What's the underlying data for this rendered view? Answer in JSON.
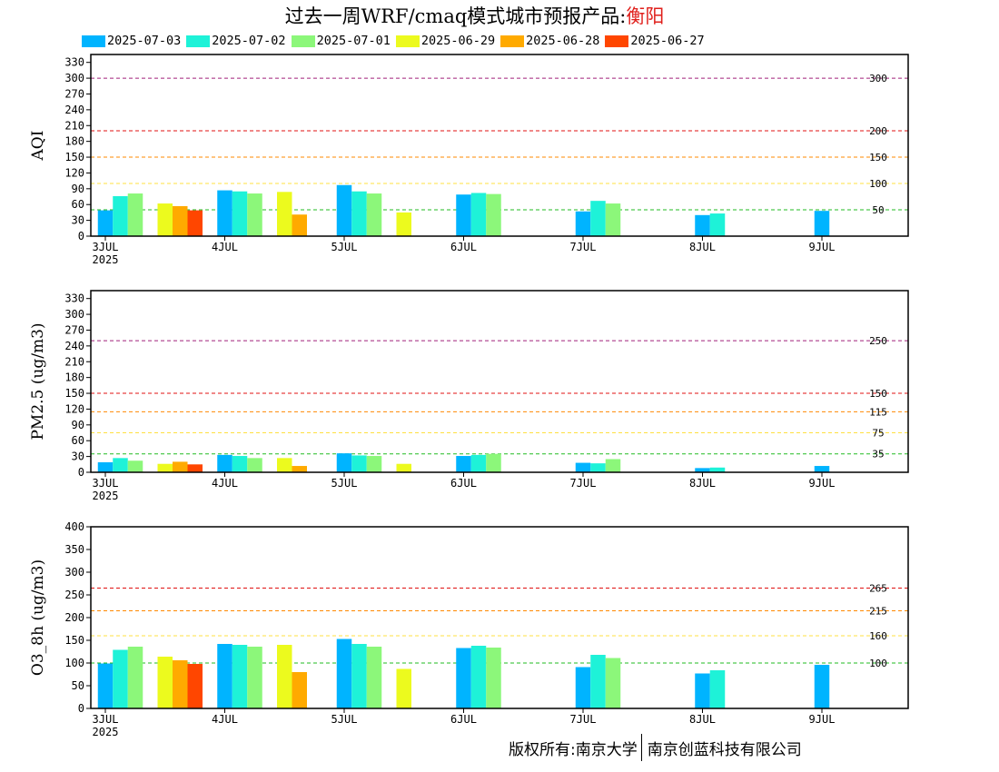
{
  "title": {
    "main": "过去一周WRF/cmaq模式城市预报产品:",
    "city": "衡阳"
  },
  "legend": [
    {
      "label": "2025-07-03",
      "color": "#00b4ff"
    },
    {
      "label": "2025-07-02",
      "color": "#1ef2d8"
    },
    {
      "label": "2025-07-01",
      "color": "#8cf77a"
    },
    {
      "label": "2025-06-29",
      "color": "#ecfa1e"
    },
    {
      "label": "2025-06-28",
      "color": "#ffaa00"
    },
    {
      "label": "2025-06-27",
      "color": "#ff4600"
    }
  ],
  "footer": {
    "left": "版权所有:南京大学",
    "right": "南京创蓝科技有限公司"
  },
  "chart_data": [
    {
      "type": "bar",
      "ylabel": "AQI",
      "ylim": [
        0,
        345
      ],
      "yticks": [
        0,
        30,
        60,
        90,
        120,
        150,
        180,
        210,
        240,
        270,
        300,
        330
      ],
      "xticks": [
        "3JUL",
        "4JUL",
        "5JUL",
        "6JUL",
        "7JUL",
        "8JUL",
        "9JUL"
      ],
      "xsublabel": "2025",
      "thresholds": [
        {
          "value": 300,
          "label": "300",
          "color": "#a0207a"
        },
        {
          "value": 200,
          "label": "200",
          "color": "#e01010"
        },
        {
          "value": 150,
          "label": "150",
          "color": "#ff8800"
        },
        {
          "value": 100,
          "label": "100",
          "color": "#ffe040"
        },
        {
          "value": 50,
          "label": "50",
          "color": "#22bb22"
        }
      ],
      "groups": [
        {
          "day": 0,
          "bars": [
            {
              "series": "2025-07-03",
              "value": 49
            },
            {
              "series": "2025-07-02",
              "value": 76
            },
            {
              "series": "2025-07-01",
              "value": 81
            }
          ]
        },
        {
          "day": 0.5,
          "bars": [
            {
              "series": "2025-06-29",
              "value": 62
            },
            {
              "series": "2025-06-28",
              "value": 57
            },
            {
              "series": "2025-06-27",
              "value": 49
            }
          ]
        },
        {
          "day": 1,
          "bars": [
            {
              "series": "2025-07-03",
              "value": 87
            },
            {
              "series": "2025-07-02",
              "value": 85
            },
            {
              "series": "2025-07-01",
              "value": 81
            }
          ]
        },
        {
          "day": 1.5,
          "bars": [
            {
              "series": "2025-06-29",
              "value": 84
            },
            {
              "series": "2025-06-28",
              "value": 41
            }
          ]
        },
        {
          "day": 2,
          "bars": [
            {
              "series": "2025-07-03",
              "value": 97
            },
            {
              "series": "2025-07-02",
              "value": 85
            },
            {
              "series": "2025-07-01",
              "value": 81
            }
          ]
        },
        {
          "day": 2.5,
          "bars": [
            {
              "series": "2025-06-29",
              "value": 45
            }
          ]
        },
        {
          "day": 3,
          "bars": [
            {
              "series": "2025-07-03",
              "value": 79
            },
            {
              "series": "2025-07-02",
              "value": 82
            },
            {
              "series": "2025-07-01",
              "value": 80
            }
          ]
        },
        {
          "day": 4,
          "bars": [
            {
              "series": "2025-07-03",
              "value": 47
            },
            {
              "series": "2025-07-02",
              "value": 67
            },
            {
              "series": "2025-07-01",
              "value": 62
            }
          ]
        },
        {
          "day": 5,
          "bars": [
            {
              "series": "2025-07-03",
              "value": 40
            },
            {
              "series": "2025-07-02",
              "value": 43
            }
          ]
        },
        {
          "day": 6,
          "bars": [
            {
              "series": "2025-07-03",
              "value": 48
            }
          ]
        }
      ]
    },
    {
      "type": "bar",
      "ylabel": "PM2.5 (ug/m3)",
      "ylim": [
        0,
        345
      ],
      "yticks": [
        0,
        30,
        60,
        90,
        120,
        150,
        180,
        210,
        240,
        270,
        300,
        330
      ],
      "xticks": [
        "3JUL",
        "4JUL",
        "5JUL",
        "6JUL",
        "7JUL",
        "8JUL",
        "9JUL"
      ],
      "xsublabel": "2025",
      "thresholds": [
        {
          "value": 250,
          "label": "250",
          "color": "#a0207a"
        },
        {
          "value": 150,
          "label": "150",
          "color": "#e01010"
        },
        {
          "value": 115,
          "label": "115",
          "color": "#ff8800"
        },
        {
          "value": 75,
          "label": "75",
          "color": "#ffe040"
        },
        {
          "value": 35,
          "label": "35",
          "color": "#22bb22"
        }
      ],
      "groups": [
        {
          "day": 0,
          "bars": [
            {
              "series": "2025-07-03",
              "value": 19
            },
            {
              "series": "2025-07-02",
              "value": 27
            },
            {
              "series": "2025-07-01",
              "value": 22
            }
          ]
        },
        {
          "day": 0.5,
          "bars": [
            {
              "series": "2025-06-29",
              "value": 16
            },
            {
              "series": "2025-06-28",
              "value": 20
            },
            {
              "series": "2025-06-27",
              "value": 15
            }
          ]
        },
        {
          "day": 1,
          "bars": [
            {
              "series": "2025-07-03",
              "value": 33
            },
            {
              "series": "2025-07-02",
              "value": 31
            },
            {
              "series": "2025-07-01",
              "value": 27
            }
          ]
        },
        {
          "day": 1.5,
          "bars": [
            {
              "series": "2025-06-29",
              "value": 27
            },
            {
              "series": "2025-06-28",
              "value": 12
            }
          ]
        },
        {
          "day": 2,
          "bars": [
            {
              "series": "2025-07-03",
              "value": 36
            },
            {
              "series": "2025-07-02",
              "value": 32
            },
            {
              "series": "2025-07-01",
              "value": 31
            }
          ]
        },
        {
          "day": 2.5,
          "bars": [
            {
              "series": "2025-06-29",
              "value": 16
            }
          ]
        },
        {
          "day": 3,
          "bars": [
            {
              "series": "2025-07-03",
              "value": 31
            },
            {
              "series": "2025-07-02",
              "value": 33
            },
            {
              "series": "2025-07-01",
              "value": 35
            }
          ]
        },
        {
          "day": 4,
          "bars": [
            {
              "series": "2025-07-03",
              "value": 18
            },
            {
              "series": "2025-07-02",
              "value": 17
            },
            {
              "series": "2025-07-01",
              "value": 25
            }
          ]
        },
        {
          "day": 5,
          "bars": [
            {
              "series": "2025-07-03",
              "value": 8
            },
            {
              "series": "2025-07-02",
              "value": 9
            }
          ]
        },
        {
          "day": 6,
          "bars": [
            {
              "series": "2025-07-03",
              "value": 12
            }
          ]
        }
      ]
    },
    {
      "type": "bar",
      "ylabel": "O3_8h (ug/m3)",
      "ylim": [
        0,
        400
      ],
      "yticks": [
        0,
        50,
        100,
        150,
        200,
        250,
        300,
        350,
        400
      ],
      "xticks": [
        "3JUL",
        "4JUL",
        "5JUL",
        "6JUL",
        "7JUL",
        "8JUL",
        "9JUL"
      ],
      "xsublabel": "2025",
      "thresholds": [
        {
          "value": 265,
          "label": "265",
          "color": "#e01010"
        },
        {
          "value": 215,
          "label": "215",
          "color": "#ff8800"
        },
        {
          "value": 160,
          "label": "160",
          "color": "#ffe040"
        },
        {
          "value": 100,
          "label": "100",
          "color": "#22bb22"
        }
      ],
      "groups": [
        {
          "day": 0,
          "bars": [
            {
              "series": "2025-07-03",
              "value": 99
            },
            {
              "series": "2025-07-02",
              "value": 129
            },
            {
              "series": "2025-07-01",
              "value": 136
            }
          ]
        },
        {
          "day": 0.5,
          "bars": [
            {
              "series": "2025-06-29",
              "value": 114
            },
            {
              "series": "2025-06-28",
              "value": 106
            },
            {
              "series": "2025-06-27",
              "value": 98
            }
          ]
        },
        {
          "day": 1,
          "bars": [
            {
              "series": "2025-07-03",
              "value": 142
            },
            {
              "series": "2025-07-02",
              "value": 140
            },
            {
              "series": "2025-07-01",
              "value": 136
            }
          ]
        },
        {
          "day": 1.5,
          "bars": [
            {
              "series": "2025-06-29",
              "value": 140
            },
            {
              "series": "2025-06-28",
              "value": 80
            }
          ]
        },
        {
          "day": 2,
          "bars": [
            {
              "series": "2025-07-03",
              "value": 153
            },
            {
              "series": "2025-07-02",
              "value": 142
            },
            {
              "series": "2025-07-01",
              "value": 136
            }
          ]
        },
        {
          "day": 2.5,
          "bars": [
            {
              "series": "2025-06-29",
              "value": 87
            }
          ]
        },
        {
          "day": 3,
          "bars": [
            {
              "series": "2025-07-03",
              "value": 133
            },
            {
              "series": "2025-07-02",
              "value": 138
            },
            {
              "series": "2025-07-01",
              "value": 134
            }
          ]
        },
        {
          "day": 4,
          "bars": [
            {
              "series": "2025-07-03",
              "value": 91
            },
            {
              "series": "2025-07-02",
              "value": 118
            },
            {
              "series": "2025-07-01",
              "value": 111
            }
          ]
        },
        {
          "day": 5,
          "bars": [
            {
              "series": "2025-07-03",
              "value": 77
            },
            {
              "series": "2025-07-02",
              "value": 84
            }
          ]
        },
        {
          "day": 6,
          "bars": [
            {
              "series": "2025-07-03",
              "value": 96
            }
          ]
        }
      ]
    }
  ]
}
